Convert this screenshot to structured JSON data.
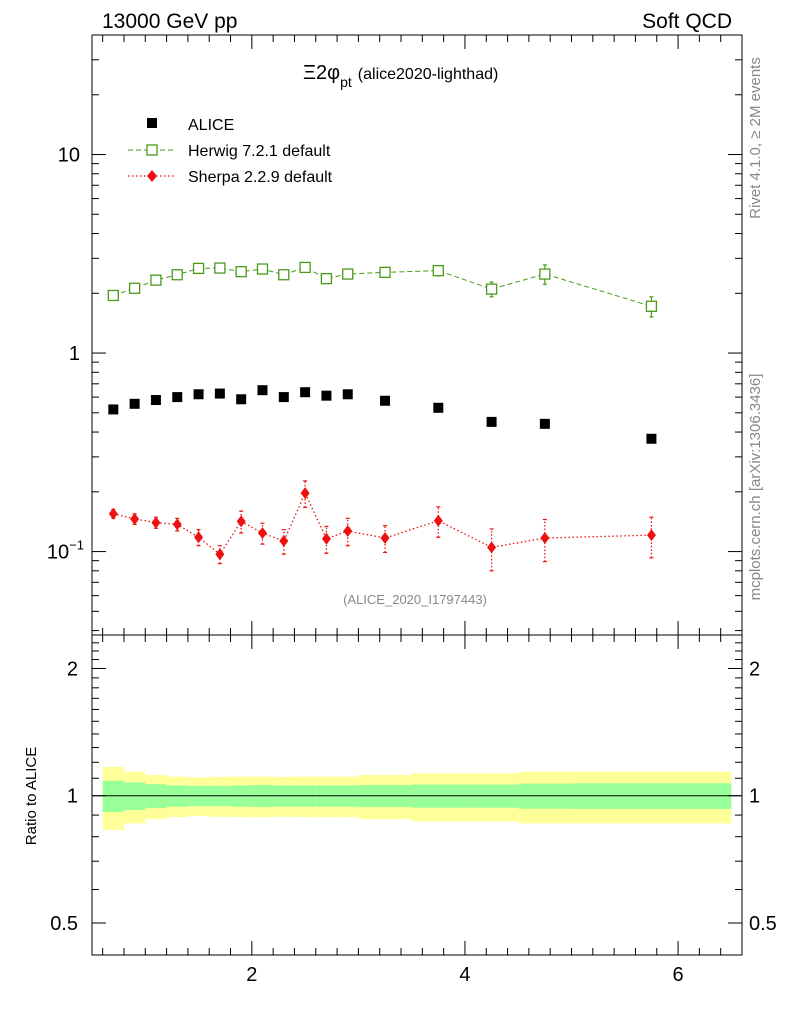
{
  "header": {
    "left": "13000 GeV pp",
    "right": "Soft QCD"
  },
  "title": {
    "main": "Ξ2φ",
    "sub": "pt",
    "tag": "(alice2020-lighthad)"
  },
  "side_text": {
    "rivet": "Rivet 4.1.0, ≥ 2M events",
    "mcplots": "mcplots.cern.ch [arXiv:1306.3436]"
  },
  "watermark": "(ALICE_2020_I1797443)",
  "ratio_ylabel": "Ratio to ALICE",
  "colors": {
    "alice": "#000000",
    "herwig": "#4a9a1a",
    "sherpa": "#ee1111",
    "band_inner": "#99ff99",
    "band_outer": "#ffff99"
  },
  "chart_data": [
    {
      "type": "scatter",
      "panel": "main",
      "yscale": "log",
      "xlim": [
        0.5,
        6.6
      ],
      "ylim": [
        0.038,
        40
      ],
      "ytick_labels": [
        "10^-1",
        "1",
        "10"
      ],
      "ytick_values": [
        0.1,
        1,
        10
      ],
      "legend_position": "top-left",
      "series": [
        {
          "name": "ALICE",
          "marker": "square-filled",
          "x": [
            0.7,
            0.9,
            1.1,
            1.3,
            1.5,
            1.7,
            1.9,
            2.1,
            2.3,
            2.5,
            2.7,
            2.9,
            3.25,
            3.75,
            4.25,
            4.75,
            5.75
          ],
          "y": [
            0.52,
            0.555,
            0.58,
            0.6,
            0.62,
            0.625,
            0.585,
            0.65,
            0.6,
            0.635,
            0.61,
            0.62,
            0.575,
            0.53,
            0.45,
            0.44,
            0.37
          ]
        },
        {
          "name": "Herwig 7.2.1 default",
          "marker": "square-open",
          "line": "dashed",
          "x": [
            0.7,
            0.9,
            1.1,
            1.3,
            1.5,
            1.7,
            1.9,
            2.1,
            2.3,
            2.5,
            2.7,
            2.9,
            3.25,
            3.75,
            4.25,
            4.75,
            5.75
          ],
          "y": [
            1.95,
            2.12,
            2.33,
            2.48,
            2.67,
            2.68,
            2.57,
            2.65,
            2.48,
            2.7,
            2.37,
            2.5,
            2.55,
            2.6,
            2.1,
            2.5,
            1.72
          ],
          "yerr": [
            0.05,
            0.06,
            0.06,
            0.06,
            0.07,
            0.07,
            0.07,
            0.07,
            0.07,
            0.08,
            0.07,
            0.08,
            0.09,
            0.15,
            0.18,
            0.28,
            0.2
          ]
        },
        {
          "name": "Sherpa 2.2.9 default",
          "marker": "diamond-filled",
          "line": "dotted",
          "x": [
            0.7,
            0.9,
            1.1,
            1.3,
            1.5,
            1.7,
            1.9,
            2.1,
            2.3,
            2.5,
            2.7,
            2.9,
            3.25,
            3.75,
            4.25,
            4.75,
            5.75
          ],
          "y": [
            0.155,
            0.146,
            0.14,
            0.137,
            0.118,
            0.097,
            0.142,
            0.124,
            0.113,
            0.197,
            0.116,
            0.127,
            0.117,
            0.143,
            0.105,
            0.117,
            0.121
          ],
          "yerr": [
            0.008,
            0.009,
            0.009,
            0.01,
            0.011,
            0.01,
            0.018,
            0.015,
            0.016,
            0.03,
            0.018,
            0.02,
            0.018,
            0.025,
            0.025,
            0.028,
            0.028
          ]
        }
      ]
    },
    {
      "type": "area",
      "panel": "ratio",
      "xlim": [
        0.5,
        6.6
      ],
      "ylim": [
        0.42,
        2.4
      ],
      "ylabel": "Ratio to ALICE",
      "ytick_labels": [
        "0.5",
        "1",
        "2"
      ],
      "ytick_values": [
        0.5,
        1,
        2
      ],
      "xtick_labels": [
        "2",
        "4",
        "6"
      ],
      "xtick_values": [
        2,
        4,
        6
      ],
      "reference_line": 1,
      "bin_edges": [
        0.6,
        0.8,
        1.0,
        1.2,
        1.4,
        1.6,
        1.8,
        2.0,
        2.2,
        2.4,
        2.6,
        2.8,
        3.0,
        3.5,
        4.0,
        4.5,
        5.0,
        6.5
      ],
      "band_inner": [
        0.085,
        0.075,
        0.065,
        0.058,
        0.055,
        0.055,
        0.058,
        0.06,
        0.058,
        0.058,
        0.058,
        0.058,
        0.06,
        0.063,
        0.063,
        0.068,
        0.07
      ],
      "band_outer": [
        0.17,
        0.14,
        0.12,
        0.11,
        0.105,
        0.108,
        0.11,
        0.11,
        0.108,
        0.11,
        0.11,
        0.11,
        0.12,
        0.13,
        0.13,
        0.14,
        0.14
      ]
    }
  ]
}
